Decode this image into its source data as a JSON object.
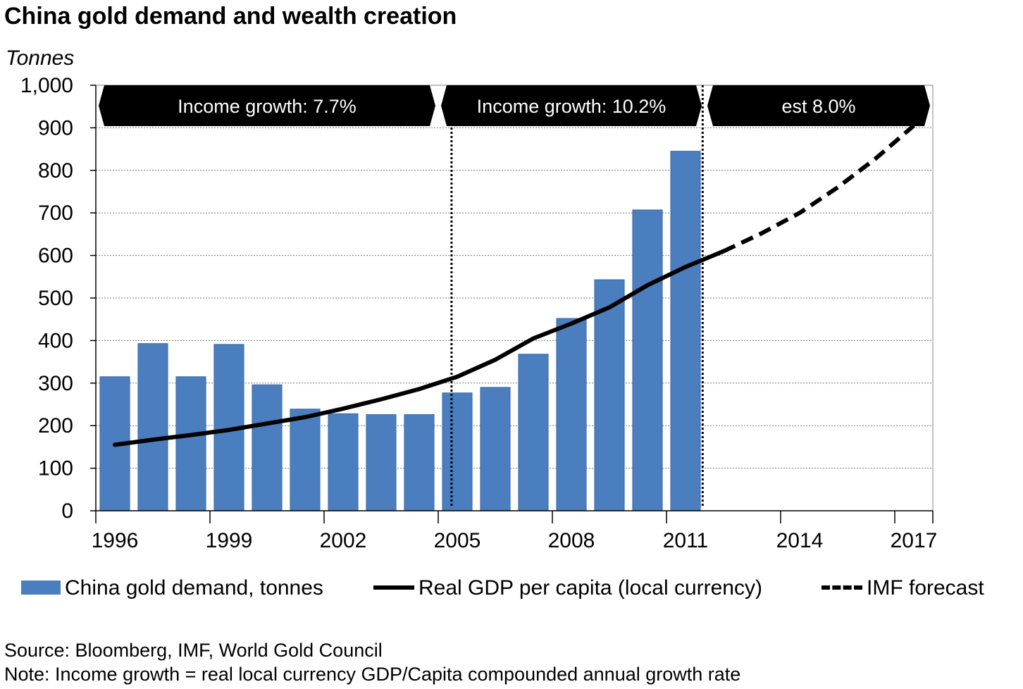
{
  "title": "China gold demand and wealth creation",
  "unit_label": "Tonnes",
  "source": "Source: Bloomberg, IMF, World Gold Council",
  "note": "Note: Income growth = real local currency GDP/Capita compounded annual growth rate",
  "chart_data": {
    "type": "bar",
    "title": "China gold demand and wealth creation",
    "ylabel": "Tonnes",
    "ylim": [
      0,
      1000
    ],
    "yticks": [
      0,
      100,
      200,
      300,
      400,
      500,
      600,
      700,
      800,
      900,
      1000
    ],
    "ytick_labels": [
      "0",
      "100",
      "200",
      "300",
      "400",
      "500",
      "600",
      "700",
      "800",
      "900",
      "1,000"
    ],
    "xlim": [
      1995.5,
      2017.5
    ],
    "xticks": [
      1996,
      1999,
      2002,
      2005,
      2008,
      2011,
      2014,
      2017
    ],
    "grid": "horizontal dotted",
    "legend_position": "bottom",
    "series": [
      {
        "name": "China gold demand, tonnes",
        "type": "bar",
        "color": "#4a7ebf",
        "x": [
          1996,
          1997,
          1998,
          1999,
          2000,
          2001,
          2002,
          2003,
          2004,
          2005,
          2006,
          2007,
          2008,
          2009,
          2010,
          2011
        ],
        "values": [
          315,
          393,
          315,
          391,
          296,
          239,
          228,
          226,
          226,
          277,
          290,
          368,
          452,
          543,
          707,
          845
        ]
      },
      {
        "name": "Real GDP per capita (local currency)",
        "type": "line",
        "color": "#000000",
        "x": [
          1996,
          1997,
          1998,
          1999,
          2000,
          2001,
          2002,
          2003,
          2004,
          2005,
          2006,
          2007,
          2008,
          2009,
          2010,
          2011,
          2012
        ],
        "values": [
          155,
          167,
          178,
          190,
          205,
          220,
          240,
          262,
          286,
          315,
          355,
          405,
          440,
          478,
          530,
          573,
          610
        ]
      },
      {
        "name": "IMF forecast",
        "type": "dashed-line",
        "color": "#000000",
        "x": [
          2012,
          2013,
          2014,
          2015,
          2016,
          2017
        ],
        "values": [
          610,
          652,
          700,
          760,
          828,
          905
        ]
      }
    ],
    "periods": [
      {
        "label": "Income growth: 7.7%",
        "from": 1995.5,
        "to": 2004.5
      },
      {
        "label": "Income growth: 10.2%",
        "from": 2004.5,
        "to": 2011.5
      },
      {
        "label": "est 8.0%",
        "from": 2011.5,
        "to": 2017.5
      }
    ],
    "dividers": [
      2004.85,
      2011.45
    ]
  }
}
